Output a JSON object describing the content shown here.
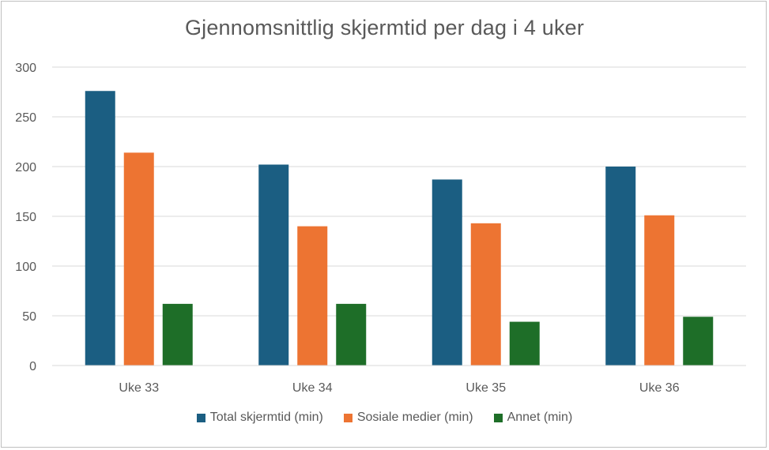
{
  "chart_data": {
    "type": "bar",
    "title": "Gjennomsnittlig skjermtid per dag i 4 uker",
    "categories": [
      "Uke 33",
      "Uke 34",
      "Uke 35",
      "Uke 36"
    ],
    "series": [
      {
        "name": "Total skjermtid (min)",
        "color": "#1b5e82",
        "values": [
          276,
          202,
          187,
          200
        ]
      },
      {
        "name": "Sosiale medier (min)",
        "color": "#ed7432",
        "values": [
          214,
          140,
          143,
          151
        ]
      },
      {
        "name": "Annet (min)",
        "color": "#1e6e28",
        "values": [
          62,
          62,
          44,
          49
        ]
      }
    ],
    "ylim": [
      0,
      300
    ],
    "yticks": [
      0,
      50,
      100,
      150,
      200,
      250,
      300
    ],
    "grid": true,
    "legend": "bottom"
  }
}
